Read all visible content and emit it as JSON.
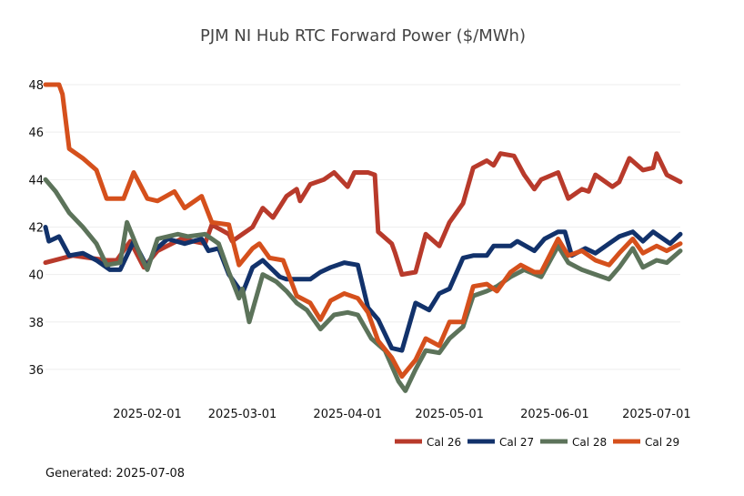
{
  "footer": {
    "label": "Generated:",
    "date": "2025-07-08"
  },
  "chart_data": {
    "type": "line",
    "title": "PJM NI Hub RTC Forward Power ($/MWh)",
    "xlabel": "",
    "ylabel": "",
    "x_range": [
      "2025-01-02",
      "2025-07-08"
    ],
    "ylim": [
      35,
      48.5
    ],
    "y_ticks": [
      36,
      38,
      40,
      42,
      44,
      46,
      48
    ],
    "y_tick_labels": [
      "36",
      "38",
      "40",
      "42",
      "44",
      "46",
      "48"
    ],
    "x_ticks": [
      "2025-02-01",
      "2025-03-01",
      "2025-04-01",
      "2025-05-01",
      "2025-06-01",
      "2025-07-01"
    ],
    "x_tick_labels": [
      "2025-02-01",
      "2025-03-01",
      "2025-04-01",
      "2025-05-01",
      "2025-06-01",
      "2025-07-01"
    ],
    "grid": "horizontal",
    "legend_position": "bottom-right",
    "series": [
      {
        "name": "Cal 26",
        "color": "#b83a2b",
        "points": [
          [
            "2025-01-02",
            40.5
          ],
          [
            "2025-01-10",
            40.8
          ],
          [
            "2025-01-20",
            40.6
          ],
          [
            "2025-01-23",
            40.6
          ],
          [
            "2025-01-27",
            41.4
          ],
          [
            "2025-01-31",
            40.3
          ],
          [
            "2025-02-04",
            41.0
          ],
          [
            "2025-02-11",
            41.5
          ],
          [
            "2025-02-18",
            41.3
          ],
          [
            "2025-02-20",
            42.1
          ],
          [
            "2025-02-25",
            41.7
          ],
          [
            "2025-02-26",
            41.4
          ],
          [
            "2025-03-04",
            42.0
          ],
          [
            "2025-03-07",
            42.8
          ],
          [
            "2025-03-10",
            42.4
          ],
          [
            "2025-03-14",
            43.3
          ],
          [
            "2025-03-17",
            43.6
          ],
          [
            "2025-03-18",
            43.1
          ],
          [
            "2025-03-21",
            43.8
          ],
          [
            "2025-03-25",
            44.0
          ],
          [
            "2025-03-28",
            44.3
          ],
          [
            "2025-04-01",
            43.7
          ],
          [
            "2025-04-03",
            44.3
          ],
          [
            "2025-04-07",
            44.3
          ],
          [
            "2025-04-09",
            44.2
          ],
          [
            "2025-04-10",
            41.8
          ],
          [
            "2025-04-14",
            41.3
          ],
          [
            "2025-04-15",
            40.9
          ],
          [
            "2025-04-17",
            40.0
          ],
          [
            "2025-04-21",
            40.1
          ],
          [
            "2025-04-24",
            41.7
          ],
          [
            "2025-04-28",
            41.2
          ],
          [
            "2025-05-01",
            42.2
          ],
          [
            "2025-05-05",
            43.0
          ],
          [
            "2025-05-08",
            44.5
          ],
          [
            "2025-05-12",
            44.8
          ],
          [
            "2025-05-14",
            44.6
          ],
          [
            "2025-05-16",
            45.1
          ],
          [
            "2025-05-20",
            45.0
          ],
          [
            "2025-05-23",
            44.2
          ],
          [
            "2025-05-26",
            43.6
          ],
          [
            "2025-05-28",
            44.0
          ],
          [
            "2025-06-02",
            44.3
          ],
          [
            "2025-06-05",
            43.2
          ],
          [
            "2025-06-09",
            43.6
          ],
          [
            "2025-06-11",
            43.5
          ],
          [
            "2025-06-13",
            44.2
          ],
          [
            "2025-06-18",
            43.7
          ],
          [
            "2025-06-20",
            43.9
          ],
          [
            "2025-06-23",
            44.9
          ],
          [
            "2025-06-27",
            44.4
          ],
          [
            "2025-06-30",
            44.5
          ],
          [
            "2025-07-01",
            45.1
          ],
          [
            "2025-07-04",
            44.2
          ],
          [
            "2025-07-08",
            43.9
          ]
        ]
      },
      {
        "name": "Cal 27",
        "color": "#12326b",
        "points": [
          [
            "2025-01-02",
            42.0
          ],
          [
            "2025-01-03",
            41.4
          ],
          [
            "2025-01-06",
            41.6
          ],
          [
            "2025-01-09",
            40.8
          ],
          [
            "2025-01-13",
            40.9
          ],
          [
            "2025-01-17",
            40.6
          ],
          [
            "2025-01-21",
            40.2
          ],
          [
            "2025-01-24",
            40.2
          ],
          [
            "2025-01-28",
            41.4
          ],
          [
            "2025-02-01",
            40.3
          ],
          [
            "2025-02-03",
            41.0
          ],
          [
            "2025-02-07",
            41.5
          ],
          [
            "2025-02-12",
            41.3
          ],
          [
            "2025-02-17",
            41.5
          ],
          [
            "2025-02-19",
            41.0
          ],
          [
            "2025-02-22",
            41.1
          ],
          [
            "2025-02-25",
            40.0
          ],
          [
            "2025-03-01",
            39.2
          ],
          [
            "2025-03-04",
            40.3
          ],
          [
            "2025-03-07",
            40.6
          ],
          [
            "2025-03-12",
            39.9
          ],
          [
            "2025-03-14",
            39.8
          ],
          [
            "2025-03-18",
            39.8
          ],
          [
            "2025-03-21",
            39.8
          ],
          [
            "2025-03-24",
            40.1
          ],
          [
            "2025-03-27",
            40.3
          ],
          [
            "2025-03-31",
            40.5
          ],
          [
            "2025-04-04",
            40.4
          ],
          [
            "2025-04-07",
            38.6
          ],
          [
            "2025-04-10",
            38.1
          ],
          [
            "2025-04-14",
            36.9
          ],
          [
            "2025-04-17",
            36.8
          ],
          [
            "2025-04-21",
            38.8
          ],
          [
            "2025-04-25",
            38.5
          ],
          [
            "2025-04-28",
            39.2
          ],
          [
            "2025-05-01",
            39.4
          ],
          [
            "2025-05-05",
            40.7
          ],
          [
            "2025-05-08",
            40.8
          ],
          [
            "2025-05-12",
            40.8
          ],
          [
            "2025-05-14",
            41.2
          ],
          [
            "2025-05-19",
            41.2
          ],
          [
            "2025-05-21",
            41.4
          ],
          [
            "2025-05-26",
            41.0
          ],
          [
            "2025-05-29",
            41.5
          ],
          [
            "2025-06-02",
            41.8
          ],
          [
            "2025-06-04",
            41.8
          ],
          [
            "2025-06-06",
            40.8
          ],
          [
            "2025-06-10",
            41.1
          ],
          [
            "2025-06-13",
            40.9
          ],
          [
            "2025-06-17",
            41.3
          ],
          [
            "2025-06-20",
            41.6
          ],
          [
            "2025-06-24",
            41.8
          ],
          [
            "2025-06-27",
            41.4
          ],
          [
            "2025-06-30",
            41.8
          ],
          [
            "2025-07-02",
            41.6
          ],
          [
            "2025-07-05",
            41.3
          ],
          [
            "2025-07-08",
            41.7
          ]
        ]
      },
      {
        "name": "Cal 28",
        "color": "#5c735a",
        "points": [
          [
            "2025-01-02",
            44.0
          ],
          [
            "2025-01-05",
            43.5
          ],
          [
            "2025-01-09",
            42.6
          ],
          [
            "2025-01-13",
            42.0
          ],
          [
            "2025-01-17",
            41.3
          ],
          [
            "2025-01-20",
            40.4
          ],
          [
            "2025-01-24",
            40.5
          ],
          [
            "2025-01-26",
            42.2
          ],
          [
            "2025-01-30",
            40.8
          ],
          [
            "2025-02-01",
            40.2
          ],
          [
            "2025-02-04",
            41.5
          ],
          [
            "2025-02-10",
            41.7
          ],
          [
            "2025-02-13",
            41.6
          ],
          [
            "2025-02-18",
            41.7
          ],
          [
            "2025-02-22",
            41.3
          ],
          [
            "2025-02-25",
            40.1
          ],
          [
            "2025-02-28",
            39.0
          ],
          [
            "2025-03-01",
            39.4
          ],
          [
            "2025-03-03",
            38.0
          ],
          [
            "2025-03-07",
            40.0
          ],
          [
            "2025-03-11",
            39.7
          ],
          [
            "2025-03-14",
            39.3
          ],
          [
            "2025-03-17",
            38.8
          ],
          [
            "2025-03-20",
            38.5
          ],
          [
            "2025-03-24",
            37.7
          ],
          [
            "2025-03-28",
            38.3
          ],
          [
            "2025-04-01",
            38.4
          ],
          [
            "2025-04-04",
            38.3
          ],
          [
            "2025-04-08",
            37.3
          ],
          [
            "2025-04-12",
            36.8
          ],
          [
            "2025-04-16",
            35.5
          ],
          [
            "2025-04-18",
            35.1
          ],
          [
            "2025-04-21",
            36.0
          ],
          [
            "2025-04-24",
            36.8
          ],
          [
            "2025-04-28",
            36.7
          ],
          [
            "2025-05-01",
            37.3
          ],
          [
            "2025-05-05",
            37.8
          ],
          [
            "2025-05-08",
            39.1
          ],
          [
            "2025-05-12",
            39.3
          ],
          [
            "2025-05-15",
            39.5
          ],
          [
            "2025-05-19",
            39.9
          ],
          [
            "2025-05-23",
            40.2
          ],
          [
            "2025-05-28",
            39.9
          ],
          [
            "2025-06-02",
            41.2
          ],
          [
            "2025-06-05",
            40.5
          ],
          [
            "2025-06-09",
            40.2
          ],
          [
            "2025-06-13",
            40.0
          ],
          [
            "2025-06-17",
            39.8
          ],
          [
            "2025-06-20",
            40.3
          ],
          [
            "2025-06-24",
            41.1
          ],
          [
            "2025-06-27",
            40.3
          ],
          [
            "2025-07-01",
            40.6
          ],
          [
            "2025-07-04",
            40.5
          ],
          [
            "2025-07-08",
            41.0
          ]
        ]
      },
      {
        "name": "Cal 29",
        "color": "#d5501c",
        "points": [
          [
            "2025-01-02",
            48.0
          ],
          [
            "2025-01-06",
            48.0
          ],
          [
            "2025-01-07",
            47.6
          ],
          [
            "2025-01-09",
            45.3
          ],
          [
            "2025-01-13",
            44.9
          ],
          [
            "2025-01-17",
            44.4
          ],
          [
            "2025-01-20",
            43.2
          ],
          [
            "2025-01-25",
            43.2
          ],
          [
            "2025-01-28",
            44.3
          ],
          [
            "2025-02-01",
            43.2
          ],
          [
            "2025-02-04",
            43.1
          ],
          [
            "2025-02-09",
            43.5
          ],
          [
            "2025-02-12",
            42.8
          ],
          [
            "2025-02-17",
            43.3
          ],
          [
            "2025-02-20",
            42.2
          ],
          [
            "2025-02-25",
            42.1
          ],
          [
            "2025-02-28",
            40.4
          ],
          [
            "2025-03-04",
            41.1
          ],
          [
            "2025-03-06",
            41.3
          ],
          [
            "2025-03-09",
            40.7
          ],
          [
            "2025-03-13",
            40.6
          ],
          [
            "2025-03-17",
            39.1
          ],
          [
            "2025-03-21",
            38.8
          ],
          [
            "2025-03-24",
            38.1
          ],
          [
            "2025-03-27",
            38.9
          ],
          [
            "2025-03-31",
            39.2
          ],
          [
            "2025-04-04",
            39.0
          ],
          [
            "2025-04-07",
            38.4
          ],
          [
            "2025-04-10",
            37.2
          ],
          [
            "2025-04-14",
            36.5
          ],
          [
            "2025-04-17",
            35.7
          ],
          [
            "2025-04-21",
            36.4
          ],
          [
            "2025-04-24",
            37.3
          ],
          [
            "2025-04-28",
            37.0
          ],
          [
            "2025-05-01",
            38.0
          ],
          [
            "2025-05-05",
            38.0
          ],
          [
            "2025-05-08",
            39.5
          ],
          [
            "2025-05-12",
            39.6
          ],
          [
            "2025-05-15",
            39.3
          ],
          [
            "2025-05-19",
            40.1
          ],
          [
            "2025-05-22",
            40.4
          ],
          [
            "2025-05-26",
            40.1
          ],
          [
            "2025-05-28",
            40.1
          ],
          [
            "2025-06-02",
            41.5
          ],
          [
            "2025-06-05",
            40.8
          ],
          [
            "2025-06-09",
            41.0
          ],
          [
            "2025-06-13",
            40.6
          ],
          [
            "2025-06-17",
            40.4
          ],
          [
            "2025-06-20",
            40.9
          ],
          [
            "2025-06-24",
            41.5
          ],
          [
            "2025-06-27",
            40.9
          ],
          [
            "2025-07-01",
            41.2
          ],
          [
            "2025-07-04",
            41.0
          ],
          [
            "2025-07-08",
            41.3
          ]
        ]
      }
    ]
  }
}
